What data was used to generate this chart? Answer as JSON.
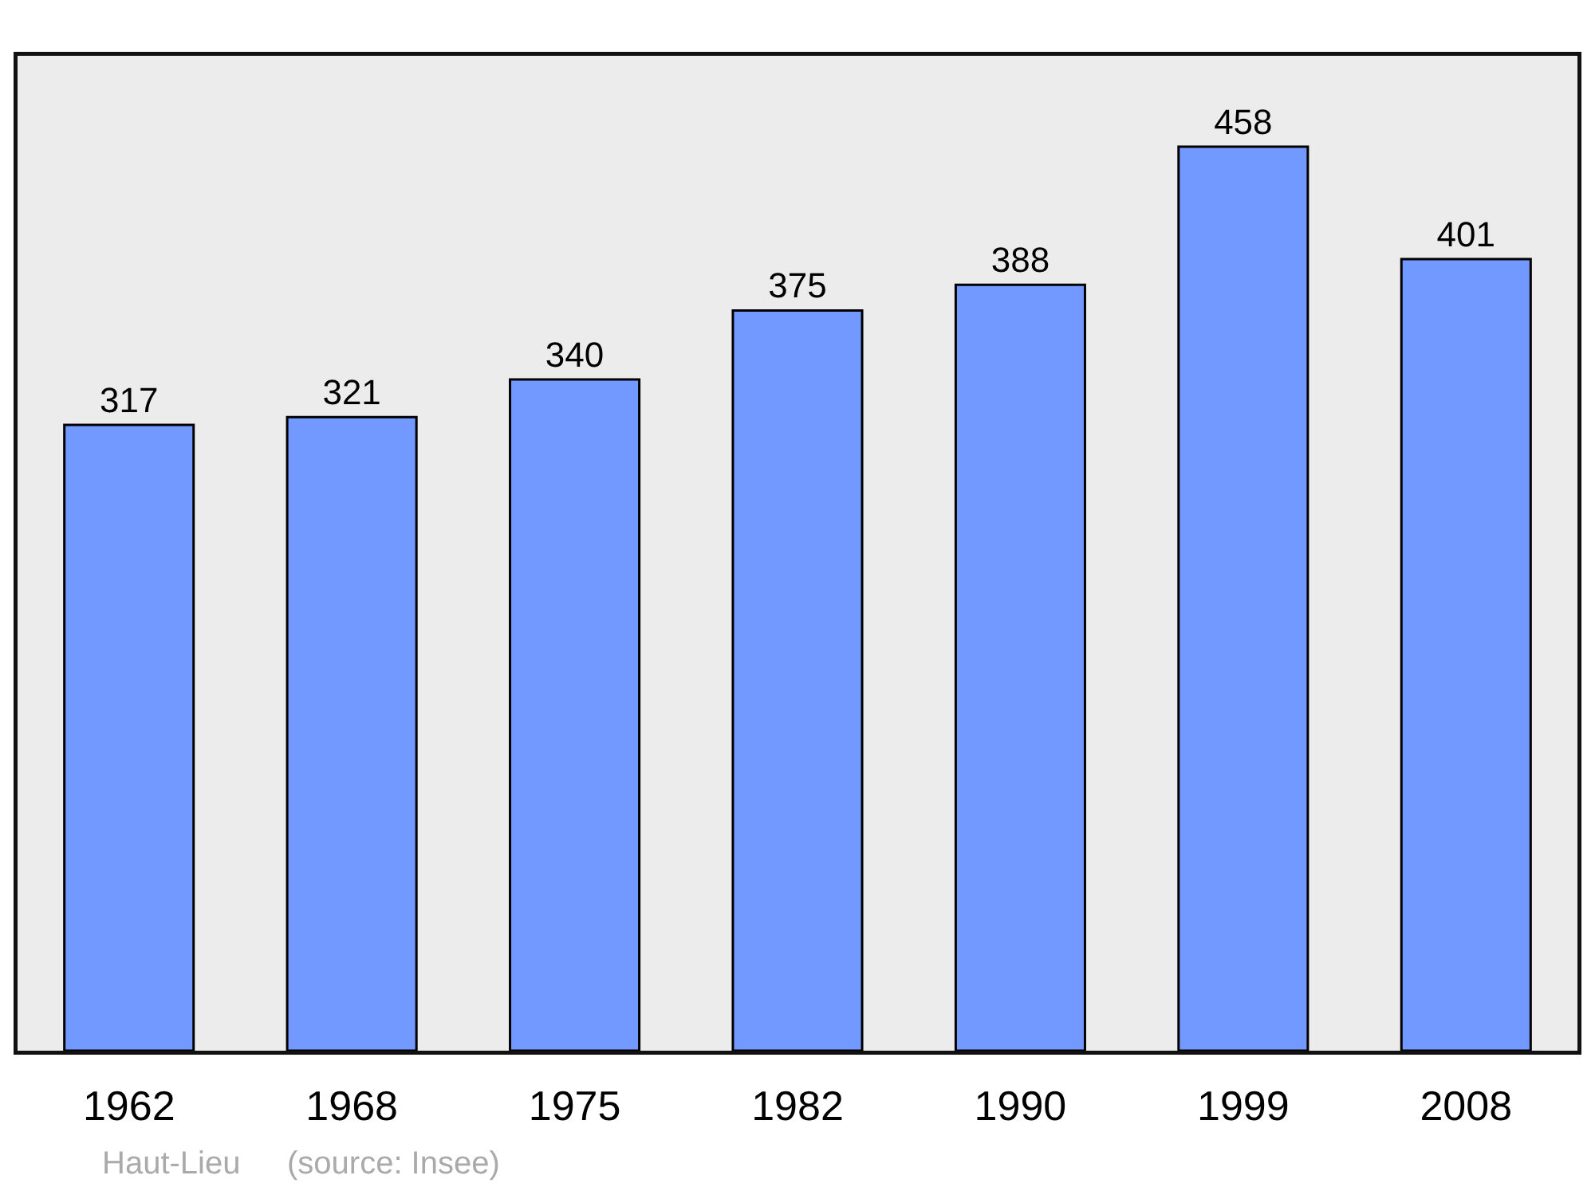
{
  "chart_data": {
    "type": "bar",
    "categories": [
      "1962",
      "1968",
      "1975",
      "1982",
      "1990",
      "1999",
      "2008"
    ],
    "values": [
      317,
      321,
      340,
      375,
      388,
      458,
      401
    ],
    "color": "#7299ff",
    "ylim": [
      0,
      504
    ],
    "data_labels": true,
    "grid": false,
    "tick_labels": "x",
    "annotations": [
      "Haut-Lieu",
      "(source: Insee)"
    ]
  }
}
